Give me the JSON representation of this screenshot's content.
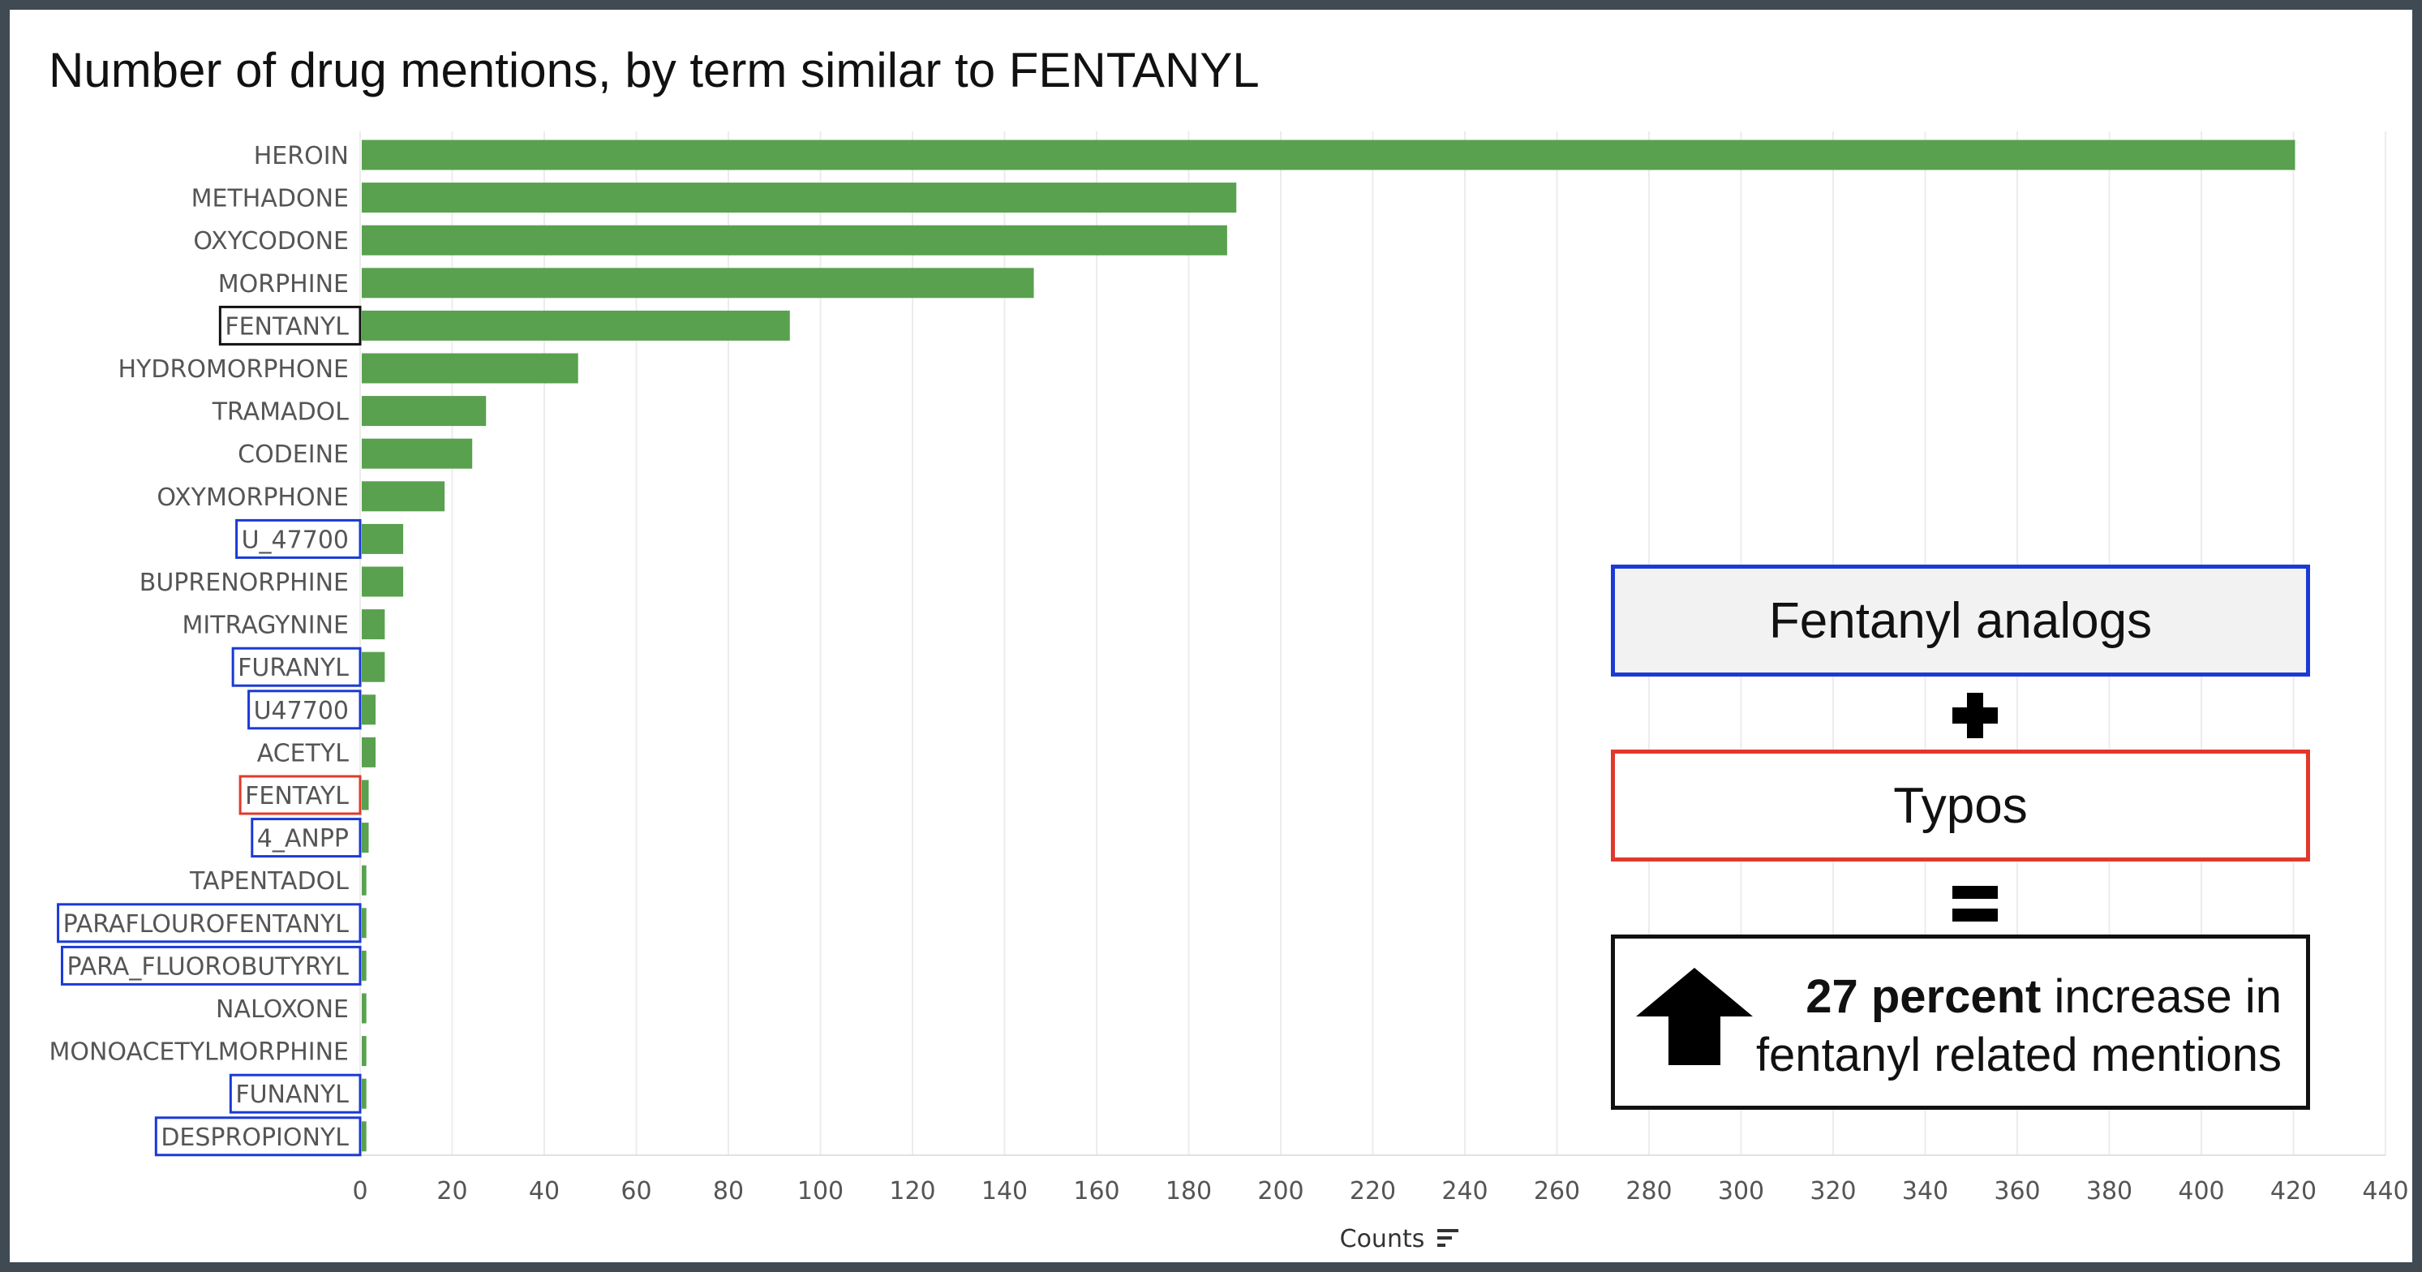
{
  "chart_data": {
    "type": "bar",
    "orientation": "horizontal",
    "title": "Number of drug mentions, by term similar to FENTANYL",
    "xlabel": "Counts",
    "ylabel": "",
    "xlim": [
      0,
      440
    ],
    "xticks": [
      0,
      20,
      40,
      60,
      80,
      100,
      120,
      140,
      160,
      180,
      200,
      220,
      240,
      260,
      280,
      300,
      320,
      340,
      360,
      380,
      400,
      420,
      440
    ],
    "grid": "vertical",
    "bar_color": "#59a14f",
    "categories": [
      "HEROIN",
      "METHADONE",
      "OXYCODONE",
      "MORPHINE",
      "FENTANYL",
      "HYDROMORPHONE",
      "TRAMADOL",
      "CODEINE",
      "OXYMORPHONE",
      "U_47700",
      "BUPRENORPHINE",
      "MITRAGYNINE",
      "FURANYL",
      "U47700",
      "ACETYL",
      "FENTAYL",
      "4_ANPP",
      "TAPENTADOL",
      "PARAFLOUROFENTANYL",
      "PARA_FLUOROBUTYRYL",
      "NALOXONE",
      "MONOACETYLMORPHINE",
      "FUNANYL",
      "DESPROPIONYL"
    ],
    "values": [
      420,
      190,
      188,
      146,
      93,
      47,
      27,
      24,
      18,
      9,
      9,
      5,
      5,
      3,
      3,
      1.5,
      1.5,
      1,
      1,
      1,
      1,
      1,
      1,
      1
    ],
    "label_boxes": [
      "none",
      "none",
      "none",
      "none",
      "black",
      "none",
      "none",
      "none",
      "none",
      "blue",
      "none",
      "none",
      "blue",
      "blue",
      "none",
      "red",
      "blue",
      "none",
      "blue",
      "blue",
      "none",
      "none",
      "blue",
      "blue"
    ],
    "box_colors": {
      "black": "#111111",
      "blue": "#1a3ad6",
      "red": "#e0392b"
    }
  },
  "callouts": {
    "analogs": "Fentanyl analogs",
    "typos": "Typos",
    "result_bold": "27 percent",
    "result_line1_rest": " increase in",
    "result_line2": "fentanyl related mentions"
  }
}
